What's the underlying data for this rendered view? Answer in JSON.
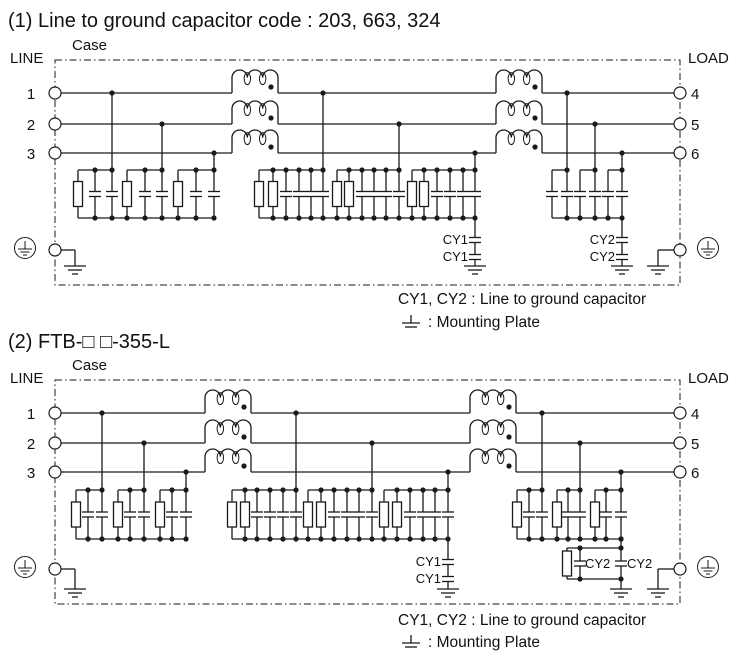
{
  "diagrams": [
    {
      "title": "(1) Line to ground capacitor code : 203, 663, 324",
      "line_label": "LINE",
      "load_label": "LOAD",
      "case_label": "Case",
      "line_terminals": [
        "1",
        "2",
        "3"
      ],
      "load_terminals": [
        "4",
        "5",
        "6"
      ],
      "cy_left_labels": [
        "CY1",
        "CY1"
      ],
      "cy_right_labels": [
        "CY2",
        "CY2"
      ],
      "notes": {
        "capacitor": "CY1, CY2 : Line to ground capacitor",
        "mounting": ": Mounting Plate"
      }
    },
    {
      "title": "(2) FTB-□ □-355-L",
      "line_label": "LINE",
      "load_label": "LOAD",
      "case_label": "Case",
      "line_terminals": [
        "1",
        "2",
        "3"
      ],
      "load_terminals": [
        "4",
        "5",
        "6"
      ],
      "cy_left_labels": [
        "CY1",
        "CY1"
      ],
      "cy_right_labels": [
        "CY2",
        "CY2"
      ],
      "notes": {
        "capacitor": "CY1, CY2 : Line to ground capacitor",
        "mounting": ": Mounting Plate"
      }
    }
  ],
  "icons": {
    "protective-earth": "circled-ground-icon",
    "ground": "ground-icon",
    "choke": "common-mode-choke-icon"
  }
}
